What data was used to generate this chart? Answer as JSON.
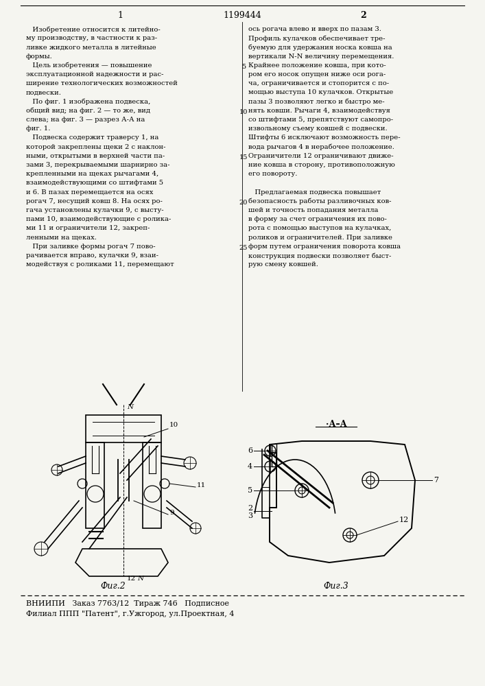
{
  "page_width": 7.07,
  "page_height": 10.0,
  "dpi": 100,
  "bg_color": "#f5f5f0",
  "header_number": "1199444",
  "page_left": "1",
  "page_right": "2",
  "col1_text": [
    "   Изобретение относится к литейно-",
    "му производству, в частности к раз-",
    "ливке жидкого металла в литейные",
    "формы.",
    "   Цель изобретения — повышение",
    "эксплуатационной надежности и рас-",
    "ширение технологических возможностей",
    "подвески.",
    "   По фиг. 1 изображена подвеска,",
    "общий вид; на фиг. 2 — то же, вид",
    "слева; на фиг. 3 — разрез А-А на",
    "фиг. 1.",
    "   Подвеска содержит траверсу 1, на",
    "которой закреплены щеки 2 с наклон-",
    "ными, открытыми в верхней части па-",
    "зами 3, перекрываемыми шарнирно за-",
    "крепленными на щеках рычагами 4,",
    "взаимодействующими со штифтами 5",
    "и 6. В пазах перемещается на осях",
    "рогач 7, несущий ковш 8. На осях ро-",
    "гача установлены кулачки 9, с высту-",
    "пами 10, взаимодействующие с ролика-",
    "ми 11 и ограничители 12, закреп-",
    "ленными на щеках.",
    "   При заливке формы рогач 7 пово-",
    "рачивается вправо, кулачки 9, взаи-",
    "модействуя с роликами 11, перемещают"
  ],
  "col2_text": [
    "ось рогача влево и вверх по пазам 3.",
    "Профиль кулачков обеспечивает тре-",
    "буемую для удержания носка ковша на",
    "вертикали N-N величину перемещения.",
    "Крайнее положение ковша, при кото-",
    "ром его носок опущен ниже оси рога-",
    "ча, ограничивается и стопорится с по-",
    "мощью выступа 10 кулачков. Открытые",
    "пазы 3 позволяют легко и быстро ме-",
    "нять ковши. Рычаги 4, взаимодействуя",
    "со штифтами 5, препятствуют самопро-",
    "извольному съему ковшей с подвески.",
    "Штифты 6 исключают возможность пере-",
    "вода рычагов 4 в нерабочее положение.",
    "Ограничители 12 ограничивают движе-",
    "ние ковша в сторону, противоположную",
    "его повороту.",
    "",
    "   Предлагаемая подвеска повышает",
    "безопасность работы разливочных ков-",
    "шей и точность попадания металла",
    "в форму за счет ограничения их пово-",
    "рота с помощью выступов на кулачках,",
    "роликов и ограничителей. При заливке",
    "форм путем ограничения поворота ковша",
    "конструкция подвески позволяет быст-",
    "рую смену ковшей."
  ],
  "line_numbers": [
    5,
    10,
    15,
    20,
    25
  ],
  "footer_line1": "ВНИИПИ   Заказ 7763/12  Тираж 746   Подписное",
  "footer_line2": "Филиал ППП \"Патент\", г.Ужгород, ул.Проектная, 4",
  "fig2_label": "Фиг.2",
  "fig3_label": "Фиг.3"
}
